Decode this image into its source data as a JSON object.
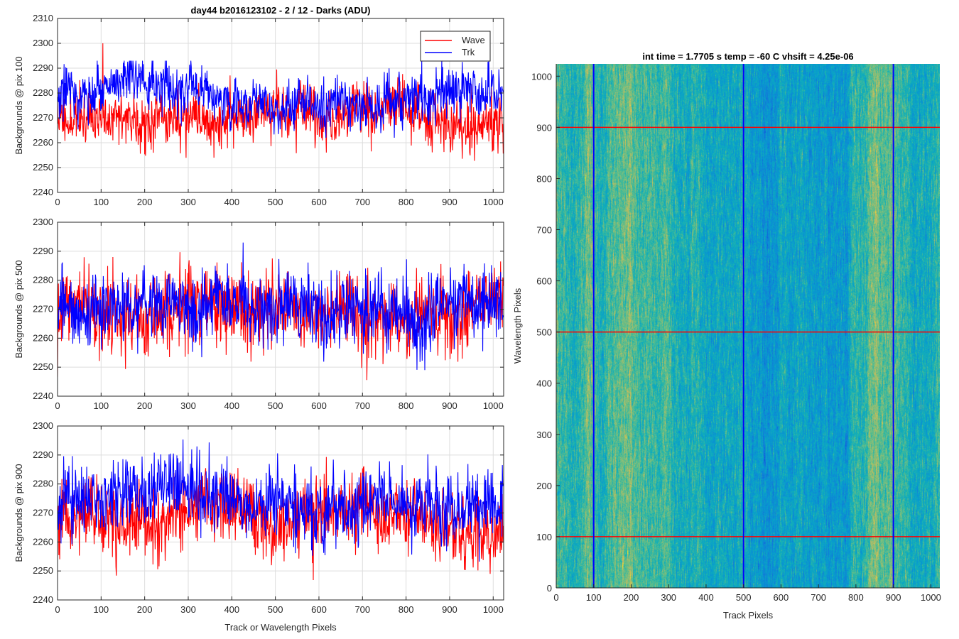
{
  "colors": {
    "wave": "#ff0000",
    "trk": "#0000ff",
    "grid": "#dddddd",
    "axis": "#262626"
  },
  "chart_data": [
    {
      "type": "line",
      "title": "day44 b2016123102 - 2 / 12 - Darks (ADU)",
      "xlabel": "",
      "ylabel": "Backgrounds @ pix 100",
      "xlim": [
        0,
        1024
      ],
      "ylim": [
        2240,
        2310
      ],
      "xticks": [
        0,
        100,
        200,
        300,
        400,
        500,
        600,
        700,
        800,
        900,
        1000
      ],
      "yticks": [
        2240,
        2250,
        2260,
        2270,
        2280,
        2290,
        2300,
        2310
      ],
      "grid": true,
      "legend": "top-right",
      "series": [
        {
          "name": "Wave",
          "color": "#ff0000",
          "points": 1024,
          "mean": 2270,
          "amplitude": 5.5,
          "min": 2242,
          "max": 2300,
          "note_peak_x": 104
        },
        {
          "name": "Trk",
          "color": "#0000ff",
          "points": 1024,
          "mean": 2277,
          "amplitude": 5,
          "min": 2262,
          "max": 2293
        }
      ]
    },
    {
      "type": "line",
      "xlabel": "",
      "ylabel": "Backgrounds @ pix 500",
      "xlim": [
        0,
        1024
      ],
      "ylim": [
        2240,
        2300
      ],
      "xticks": [
        0,
        100,
        200,
        300,
        400,
        500,
        600,
        700,
        800,
        900,
        1000
      ],
      "yticks": [
        2240,
        2250,
        2260,
        2270,
        2280,
        2290,
        2300
      ],
      "grid": true,
      "series": [
        {
          "name": "Wave",
          "color": "#ff0000",
          "points": 1024,
          "mean": 2268,
          "amplitude": 6.5,
          "min": 2240,
          "max": 2292
        },
        {
          "name": "Trk",
          "color": "#0000ff",
          "points": 1024,
          "mean": 2270,
          "amplitude": 6,
          "min": 2249,
          "max": 2293
        }
      ]
    },
    {
      "type": "line",
      "xlabel": "Track or Wavelength Pixels",
      "ylabel": "Backgrounds @ pix 900",
      "xlim": [
        0,
        1024
      ],
      "ylim": [
        2240,
        2300
      ],
      "xticks": [
        0,
        100,
        200,
        300,
        400,
        500,
        600,
        700,
        800,
        900,
        1000
      ],
      "yticks": [
        2240,
        2250,
        2260,
        2270,
        2280,
        2290,
        2300
      ],
      "grid": true,
      "series": [
        {
          "name": "Wave",
          "color": "#ff0000",
          "points": 1024,
          "mean": 2268,
          "amplitude": 6.5,
          "min": 2243,
          "max": 2294
        },
        {
          "name": "Trk",
          "color": "#0000ff",
          "points": 1024,
          "mean": 2273,
          "amplitude": 6,
          "min": 2250,
          "max": 2297
        }
      ]
    },
    {
      "type": "heatmap",
      "title": "int time = 1.7705 s    temp = -60 C    vhsift = 4.25e-06",
      "xlabel": "Track Pixels",
      "ylabel": "Wavelength Pixels",
      "xlim": [
        0,
        1024
      ],
      "ylim": [
        0,
        1024
      ],
      "xticks": [
        0,
        100,
        200,
        300,
        400,
        500,
        600,
        700,
        800,
        900,
        1000
      ],
      "yticks": [
        0,
        100,
        200,
        300,
        400,
        500,
        600,
        700,
        800,
        900,
        1000
      ],
      "colormap": "parula",
      "overlay_vertical_lines": {
        "x": [
          100,
          500,
          900
        ],
        "color": "#0000ff"
      },
      "overlay_horizontal_lines": {
        "y": [
          100,
          500,
          900
        ],
        "color": "#ff0000"
      }
    }
  ]
}
